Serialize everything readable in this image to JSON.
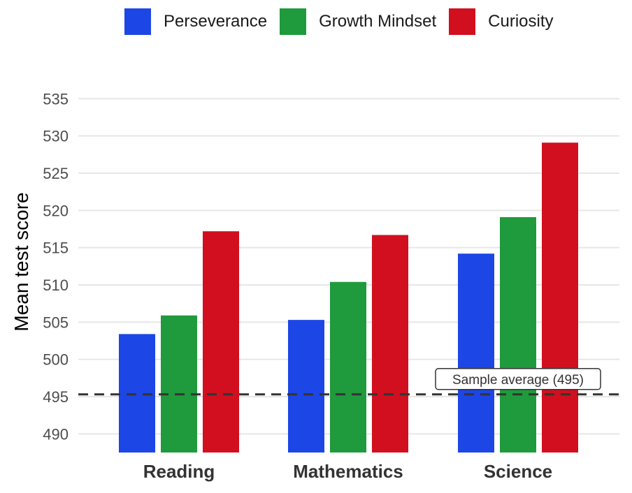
{
  "chart_data": {
    "type": "bar",
    "categories": [
      "Reading",
      "Mathematics",
      "Science"
    ],
    "series": [
      {
        "name": "Perseverance",
        "color": "#1d46e6",
        "values": [
          503.4,
          505.3,
          514.2
        ]
      },
      {
        "name": "Growth Mindset",
        "color": "#1f9a3c",
        "values": [
          505.9,
          510.4,
          519.1
        ]
      },
      {
        "name": "Curiosity",
        "color": "#d10f1f",
        "values": [
          517.2,
          516.7,
          529.1
        ]
      }
    ],
    "title": "",
    "xlabel": "",
    "ylabel": "Mean test score",
    "ylim": [
      487.5,
      537
    ],
    "yticks": [
      490,
      495,
      500,
      505,
      510,
      515,
      520,
      525,
      530,
      535
    ],
    "grid": true,
    "legend_position": "top",
    "reference_line": {
      "value": 495.3,
      "label": "Sample average (495)",
      "style": "dashed",
      "color": "#333333"
    }
  }
}
